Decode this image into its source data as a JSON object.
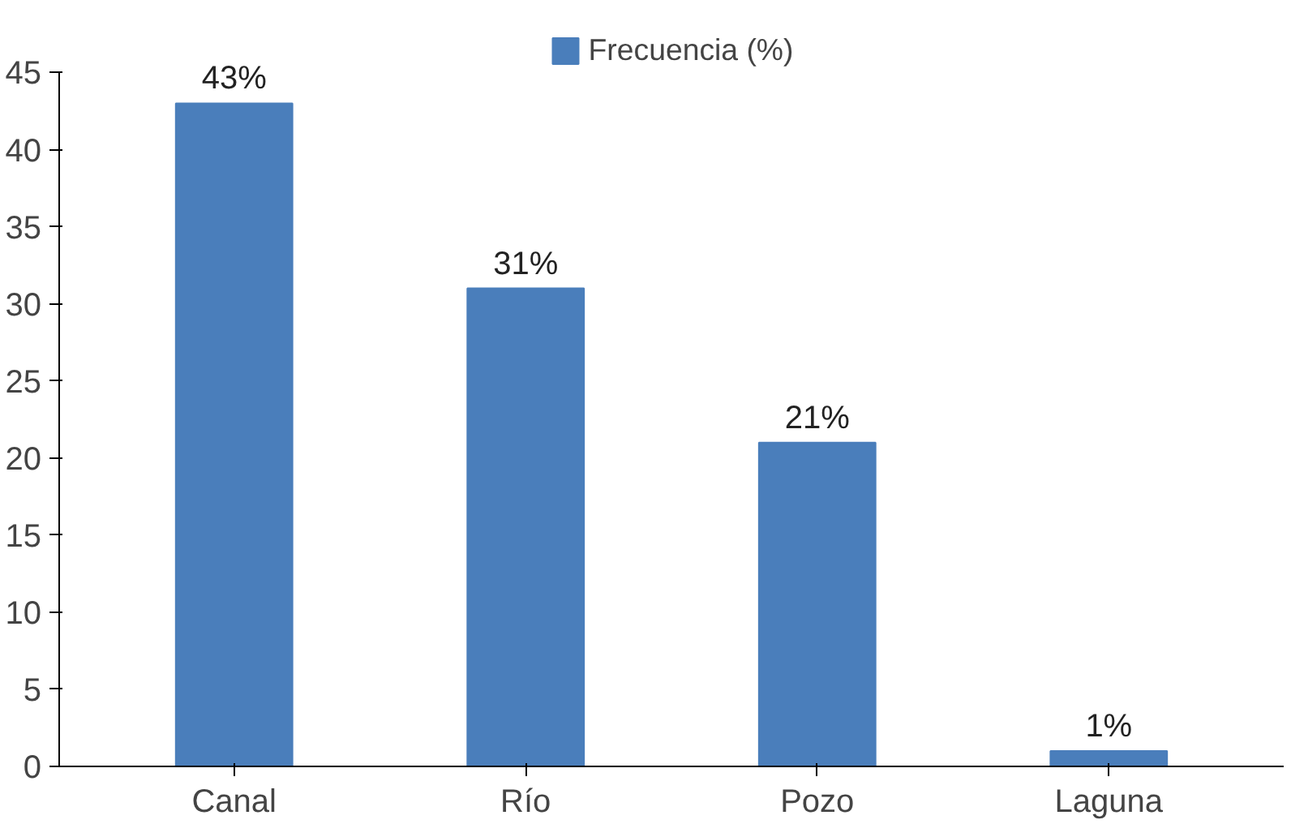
{
  "chart_data": {
    "type": "bar",
    "categories": [
      "Canal",
      "Río",
      "Pozo",
      "Laguna"
    ],
    "series": [
      {
        "name": "Frecuencia (%)",
        "color": "#4a7ebb",
        "values": [
          43,
          31,
          21,
          1
        ],
        "value_labels": [
          "43%",
          "31%",
          "21%",
          "1%"
        ]
      }
    ],
    "ylim": [
      0,
      45
    ],
    "yticks": [
      0,
      5,
      10,
      15,
      20,
      25,
      30,
      35,
      40,
      45
    ],
    "grid": false,
    "legend": "top"
  }
}
